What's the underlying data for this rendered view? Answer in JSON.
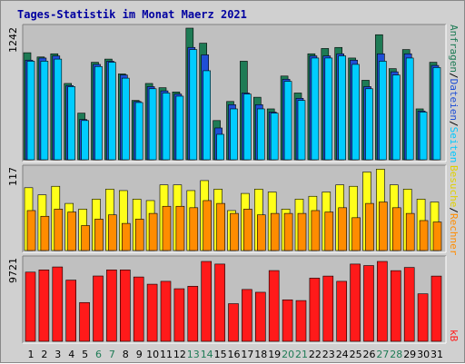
{
  "title": "Tages-Statistik im Monat Maerz 2021",
  "colors": {
    "background": "#d0d0d0",
    "panel": "#c0c0c0",
    "hits": "#1e7b55",
    "files": "#1f4fd6",
    "pages": "#00ccff",
    "visits": "#ffff1a",
    "sites": "#ff8c00",
    "kbytes": "#ff1a1a",
    "weekday_label": "#000000",
    "weekend_label": "#1e7b55"
  },
  "right_labels": {
    "top": [
      {
        "text": "Anfragen",
        "color": "#1e7b55"
      },
      {
        "text": "/",
        "color": "#000000"
      },
      {
        "text": "Dateien",
        "color": "#1f4fd6"
      },
      {
        "text": "/",
        "color": "#000000"
      },
      {
        "text": "Seiten",
        "color": "#00c8ff"
      }
    ],
    "middle": [
      {
        "text": "Besuche",
        "color": "#e0d000"
      },
      {
        "text": "/",
        "color": "#000000"
      },
      {
        "text": "Rechner",
        "color": "#ff8c00"
      }
    ],
    "bottom": [
      {
        "text": "kB",
        "color": "#ff1a1a"
      }
    ]
  },
  "chart_data": [
    {
      "type": "bar",
      "panel": "top",
      "ymax_label": "1242",
      "ymax": 1242,
      "categories": [
        "1",
        "2",
        "3",
        "4",
        "5",
        "6",
        "7",
        "8",
        "9",
        "10",
        "11",
        "12",
        "13",
        "14",
        "15",
        "16",
        "17",
        "18",
        "19",
        "20",
        "21",
        "22",
        "23",
        "24",
        "25",
        "26",
        "27",
        "28",
        "29",
        "30",
        "31"
      ],
      "series": [
        {
          "name": "Anfragen",
          "values": [
            1010,
            970,
            1000,
            720,
            440,
            920,
            950,
            810,
            560,
            720,
            680,
            640,
            1242,
            1100,
            370,
            550,
            930,
            590,
            480,
            790,
            630,
            1000,
            1050,
            1060,
            960,
            750,
            1180,
            860,
            1040,
            480,
            920
          ]
        },
        {
          "name": "Dateien",
          "values": [
            940,
            960,
            980,
            700,
            380,
            900,
            930,
            800,
            550,
            690,
            650,
            620,
            1060,
            990,
            300,
            520,
            630,
            520,
            450,
            760,
            580,
            980,
            980,
            1000,
            940,
            690,
            1000,
            830,
            1000,
            460,
            890
          ]
        },
        {
          "name": "Seiten",
          "values": [
            930,
            930,
            950,
            690,
            370,
            880,
            920,
            770,
            540,
            670,
            630,
            600,
            1040,
            840,
            240,
            480,
            620,
            480,
            440,
            740,
            560,
            960,
            960,
            980,
            900,
            670,
            930,
            800,
            960,
            450,
            870
          ]
        }
      ]
    },
    {
      "type": "bar",
      "panel": "middle",
      "ymax_label": "117",
      "ymax": 117,
      "categories": [
        "1",
        "2",
        "3",
        "4",
        "5",
        "6",
        "7",
        "8",
        "9",
        "10",
        "11",
        "12",
        "13",
        "14",
        "15",
        "16",
        "17",
        "18",
        "19",
        "20",
        "21",
        "22",
        "23",
        "24",
        "25",
        "26",
        "27",
        "28",
        "29",
        "30",
        "31"
      ],
      "series": [
        {
          "name": "Besuche",
          "values": [
            88,
            78,
            90,
            66,
            58,
            72,
            86,
            84,
            72,
            70,
            92,
            92,
            84,
            98,
            86,
            56,
            80,
            86,
            82,
            58,
            72,
            76,
            82,
            92,
            90,
            110,
            114,
            92,
            86,
            72,
            68
          ]
        },
        {
          "name": "Rechner",
          "values": [
            56,
            48,
            58,
            54,
            35,
            44,
            50,
            38,
            44,
            52,
            62,
            62,
            60,
            70,
            66,
            52,
            58,
            50,
            52,
            52,
            52,
            56,
            54,
            60,
            46,
            66,
            68,
            60,
            52,
            42,
            40
          ]
        }
      ]
    },
    {
      "type": "bar",
      "panel": "bottom",
      "ymax_label": "9721",
      "ymax": 9721,
      "categories": [
        "1",
        "2",
        "3",
        "4",
        "5",
        "6",
        "7",
        "8",
        "9",
        "10",
        "11",
        "12",
        "13",
        "14",
        "15",
        "16",
        "17",
        "18",
        "19",
        "20",
        "21",
        "22",
        "23",
        "24",
        "25",
        "26",
        "27",
        "28",
        "29",
        "30",
        "31"
      ],
      "series": [
        {
          "name": "kB",
          "values": [
            8420,
            8690,
            9050,
            7450,
            4720,
            7950,
            8690,
            8690,
            7830,
            6950,
            7300,
            6400,
            6700,
            9721,
            9400,
            4580,
            6310,
            5970,
            8610,
            5050,
            4960,
            7690,
            7940,
            7300,
            9400,
            9220,
            9721,
            8600,
            8990,
            5780,
            7940
          ]
        }
      ]
    }
  ],
  "weekend_days": [
    "6",
    "7",
    "13",
    "14",
    "20",
    "21",
    "27",
    "28"
  ]
}
